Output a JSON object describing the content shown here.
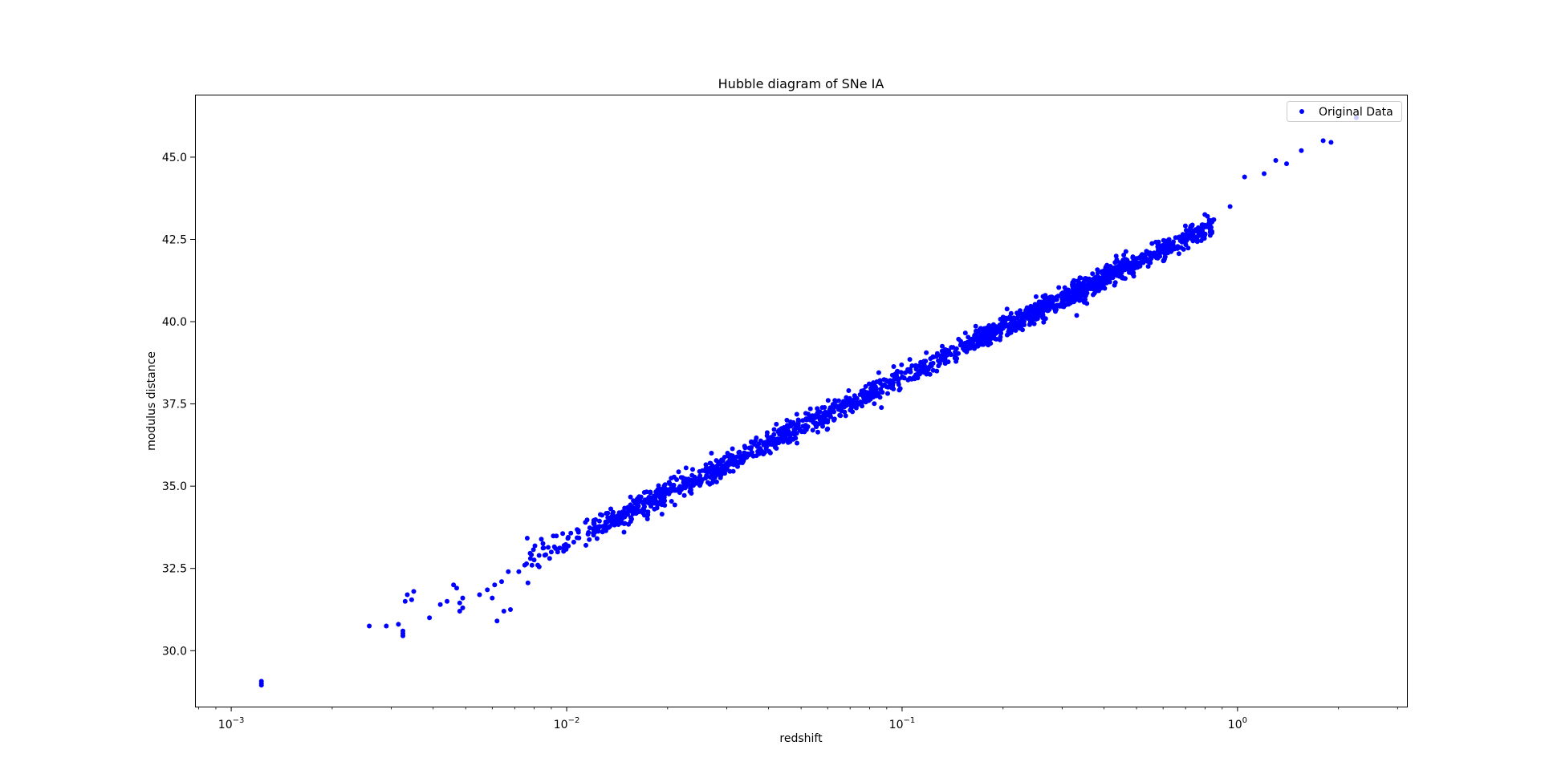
{
  "chart_data": {
    "type": "scatter",
    "title": "Hubble diagram of SNe IA",
    "xlabel": "redshift",
    "ylabel": "modulus distance",
    "xscale": "log",
    "xlim": [
      0.00078,
      3.2
    ],
    "ylim": [
      28.3,
      46.9
    ],
    "x_ticks": [
      {
        "value": 0.001,
        "base": "10",
        "exp": "−3"
      },
      {
        "value": 0.01,
        "base": "10",
        "exp": "−2"
      },
      {
        "value": 0.1,
        "base": "10",
        "exp": "−1"
      },
      {
        "value": 1,
        "base": "10",
        "exp": "0"
      }
    ],
    "y_ticks": [
      "30.0",
      "32.5",
      "35.0",
      "37.5",
      "40.0",
      "42.5",
      "45.0"
    ],
    "grid": false,
    "legend": {
      "placement": "top-right",
      "entries": [
        "Original Data"
      ]
    },
    "series": [
      {
        "name": "Original Data",
        "color": "#0000ff",
        "marker": "circle",
        "approx_point_count": 1700,
        "trend": {
          "slope_per_decade": 5.0,
          "mu_at_z_0_1": 38.3,
          "scatter": 0.22
        },
        "x": [
          0.00123,
          0.00123,
          0.00123,
          0.00258,
          0.0029,
          0.00315,
          0.00325,
          0.00325,
          0.00325,
          0.0033,
          0.00335,
          0.00345,
          0.0035,
          0.0039,
          0.0042,
          0.0044,
          0.0046,
          0.0047,
          0.0048,
          0.0048,
          0.0049,
          0.0049,
          0.0055,
          0.0058,
          0.006,
          0.0061,
          0.0062,
          0.0064,
          0.0065,
          0.0067,
          0.0068,
          0.0072,
          0.0075,
          0.0078,
          0.0082,
          0.0086,
          0.009,
          0.0094,
          0.0098,
          0.0105,
          0.012,
          0.016,
          0.022,
          0.03,
          0.045,
          0.06,
          0.08,
          0.1,
          0.14,
          0.2,
          0.3,
          0.45,
          0.6,
          0.75,
          0.85,
          0.95,
          1.05,
          1.2,
          1.3,
          1.4,
          1.55,
          1.8,
          1.9,
          2.26
        ],
        "y": [
          29.0,
          29.07,
          28.95,
          30.75,
          30.75,
          30.8,
          30.45,
          30.52,
          30.6,
          31.5,
          31.7,
          31.55,
          31.8,
          31.0,
          31.4,
          31.5,
          32.0,
          31.9,
          31.2,
          31.45,
          31.6,
          31.3,
          31.7,
          31.85,
          31.6,
          32.0,
          30.9,
          32.1,
          31.2,
          32.4,
          31.25,
          32.4,
          32.6,
          32.8,
          32.6,
          32.9,
          33.0,
          33.0,
          33.1,
          33.3,
          33.7,
          34.3,
          34.9,
          35.5,
          36.4,
          37.0,
          37.7,
          38.3,
          39.0,
          39.8,
          40.7,
          41.6,
          42.3,
          42.8,
          43.1,
          43.5,
          44.4,
          44.5,
          44.9,
          44.8,
          45.2,
          45.5,
          45.45,
          46.2
        ]
      }
    ]
  }
}
